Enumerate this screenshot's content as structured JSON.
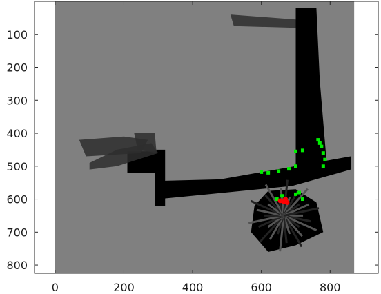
{
  "chart_data": {
    "type": "heatmap",
    "title": "",
    "xlabel": "",
    "ylabel": "",
    "xlim": [
      -60,
      940
    ],
    "ylim": [
      825,
      0
    ],
    "y_inverted": true,
    "grid": false,
    "xticks": [
      0,
      200,
      400,
      600,
      800
    ],
    "yticks": [
      100,
      200,
      300,
      400,
      500,
      600,
      700,
      800
    ],
    "image_extent": {
      "x": [
        0,
        870
      ],
      "y": [
        0,
        825
      ]
    },
    "colors": {
      "unknown": "#808080",
      "free": "#000000",
      "frontier": "#00ee00",
      "robot": "#ff0000",
      "axes_bg": "#ffffff"
    },
    "regions": [
      {
        "kind": "free",
        "polygon": [
          [
            700,
            20
          ],
          [
            760,
            20
          ],
          [
            770,
            240
          ],
          [
            790,
            490
          ],
          [
            760,
            520
          ],
          [
            700,
            510
          ]
        ]
      },
      {
        "kind": "free",
        "polygon": [
          [
            290,
            545
          ],
          [
            480,
            540
          ],
          [
            780,
            485
          ],
          [
            860,
            470
          ],
          [
            860,
            510
          ],
          [
            690,
            560
          ],
          [
            300,
            600
          ]
        ]
      },
      {
        "kind": "free",
        "polygon": [
          [
            290,
            450
          ],
          [
            320,
            450
          ],
          [
            320,
            620
          ],
          [
            290,
            620
          ]
        ]
      },
      {
        "kind": "free",
        "polygon": [
          [
            210,
            455
          ],
          [
            300,
            455
          ],
          [
            300,
            520
          ],
          [
            210,
            520
          ]
        ]
      },
      {
        "kind": "shade",
        "polygon": [
          [
            100,
            490
          ],
          [
            180,
            450
          ],
          [
            280,
            430
          ],
          [
            300,
            460
          ],
          [
            180,
            500
          ],
          [
            100,
            510
          ]
        ]
      },
      {
        "kind": "shade",
        "polygon": [
          [
            70,
            420
          ],
          [
            200,
            410
          ],
          [
            270,
            420
          ],
          [
            250,
            460
          ],
          [
            90,
            470
          ]
        ]
      },
      {
        "kind": "shade",
        "polygon": [
          [
            230,
            400
          ],
          [
            290,
            400
          ],
          [
            295,
            460
          ],
          [
            240,
            450
          ]
        ]
      },
      {
        "kind": "shade",
        "polygon": [
          [
            510,
            40
          ],
          [
            700,
            55
          ],
          [
            700,
            80
          ],
          [
            520,
            75
          ]
        ]
      },
      {
        "kind": "free",
        "polygon": [
          [
            620,
            575
          ],
          [
            700,
            570
          ],
          [
            760,
            610
          ],
          [
            780,
            700
          ],
          [
            700,
            740
          ],
          [
            620,
            760
          ],
          [
            570,
            700
          ],
          [
            580,
            620
          ]
        ]
      }
    ],
    "frontier_points": [
      [
        765,
        420
      ],
      [
        770,
        430
      ],
      [
        775,
        440
      ],
      [
        780,
        460
      ],
      [
        785,
        480
      ],
      [
        780,
        500
      ],
      [
        600,
        518
      ],
      [
        620,
        520
      ],
      [
        650,
        515
      ],
      [
        680,
        508
      ],
      [
        700,
        500
      ],
      [
        700,
        455
      ],
      [
        720,
        452
      ],
      [
        645,
        600
      ],
      [
        660,
        590
      ],
      [
        700,
        585
      ],
      [
        710,
        580
      ],
      [
        720,
        600
      ]
    ],
    "robot_points": [
      [
        655,
        605
      ],
      [
        665,
        608
      ],
      [
        670,
        600
      ],
      [
        675,
        610
      ]
    ]
  }
}
